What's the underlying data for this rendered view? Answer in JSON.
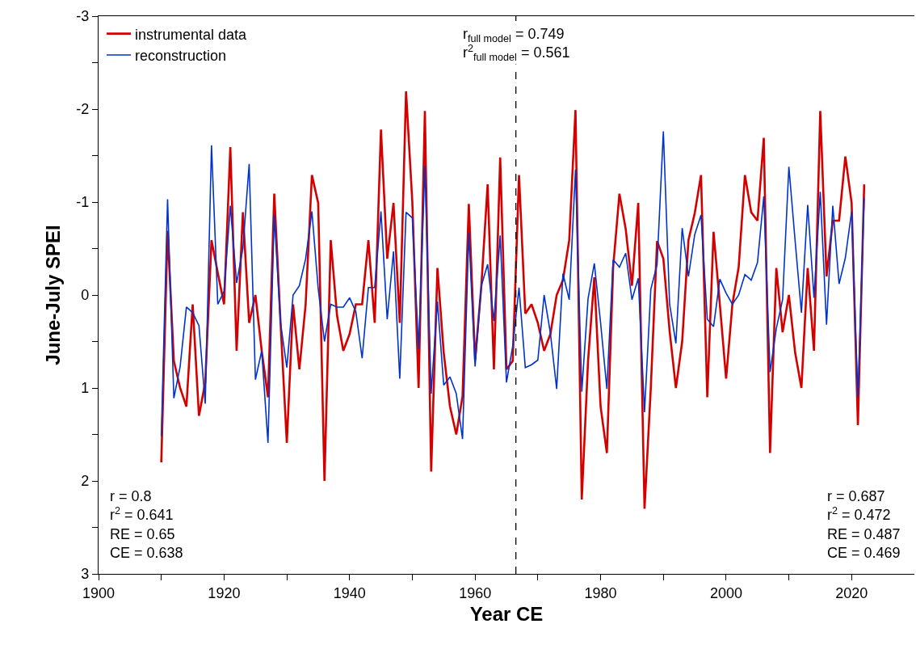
{
  "chart_data": {
    "type": "line",
    "xlabel": "Year CE",
    "ylabel": "June-July SPEI",
    "x": [
      1910,
      1911,
      1912,
      1913,
      1914,
      1915,
      1916,
      1917,
      1918,
      1919,
      1920,
      1921,
      1922,
      1923,
      1924,
      1925,
      1926,
      1927,
      1928,
      1929,
      1930,
      1931,
      1932,
      1933,
      1934,
      1935,
      1936,
      1937,
      1938,
      1939,
      1940,
      1941,
      1942,
      1943,
      1944,
      1945,
      1946,
      1947,
      1948,
      1949,
      1950,
      1951,
      1952,
      1953,
      1954,
      1955,
      1956,
      1957,
      1958,
      1959,
      1960,
      1961,
      1962,
      1963,
      1964,
      1965,
      1966,
      1967,
      1968,
      1969,
      1970,
      1971,
      1972,
      1973,
      1974,
      1975,
      1976,
      1977,
      1978,
      1979,
      1980,
      1981,
      1982,
      1983,
      1984,
      1985,
      1986,
      1987,
      1988,
      1989,
      1990,
      1991,
      1992,
      1993,
      1994,
      1995,
      1996,
      1997,
      1998,
      1999,
      2000,
      2001,
      2002,
      2003,
      2004,
      2005,
      2006,
      2007,
      2008,
      2009,
      2010,
      2011,
      2012,
      2013,
      2014,
      2015,
      2016,
      2017,
      2018,
      2019,
      2020,
      2021,
      2022
    ],
    "series": [
      {
        "name": "instrumental data",
        "color": "#d40000",
        "values": [
          1.8,
          -0.69,
          0.71,
          1.0,
          1.2,
          0.1,
          1.3,
          0.94,
          -0.59,
          -0.24,
          0.1,
          -1.59,
          0.6,
          -0.89,
          0.3,
          0.0,
          0.6,
          1.1,
          -1.09,
          0.3,
          1.59,
          0.1,
          0.8,
          0.1,
          -1.29,
          -0.99,
          2.0,
          -0.59,
          0.22,
          0.6,
          0.42,
          0.1,
          0.1,
          -0.59,
          0.3,
          -1.78,
          -0.39,
          -0.99,
          0.3,
          -2.19,
          -1.0,
          1.0,
          -1.98,
          1.9,
          -0.29,
          0.62,
          1.2,
          1.5,
          1.09,
          -0.98,
          0.7,
          -0.1,
          -1.19,
          0.8,
          -1.48,
          0.8,
          0.71,
          -1.29,
          0.2,
          0.1,
          0.3,
          0.6,
          0.42,
          0.0,
          -0.16,
          -0.59,
          -1.99,
          2.2,
          0.71,
          -0.19,
          1.2,
          1.7,
          -0.3,
          -1.09,
          -0.71,
          -0.1,
          -0.99,
          2.3,
          1.0,
          -0.58,
          -0.39,
          0.39,
          1.0,
          0.5,
          -0.59,
          -0.88,
          -1.29,
          1.1,
          -0.68,
          0.1,
          0.9,
          0.1,
          -0.3,
          -1.29,
          -0.89,
          -0.8,
          -1.69,
          1.7,
          -0.29,
          0.4,
          0.0,
          0.62,
          1.0,
          -0.29,
          0.6,
          -1.98,
          -0.2,
          -0.8,
          -0.8,
          -1.49,
          -0.99,
          1.4,
          -1.19
        ]
      },
      {
        "name": "reconstruction",
        "color": "#0033cc",
        "values": [
          1.52,
          -1.03,
          1.11,
          0.77,
          0.13,
          0.19,
          0.33,
          1.17,
          -1.61,
          0.1,
          -0.04,
          -0.96,
          -0.13,
          -0.5,
          -1.41,
          0.91,
          0.6,
          1.59,
          -0.86,
          0.3,
          0.78,
          0.0,
          -0.1,
          -0.39,
          -0.9,
          -0.07,
          0.5,
          0.1,
          0.13,
          0.13,
          0.03,
          0.18,
          0.68,
          -0.08,
          -0.08,
          -0.9,
          0.26,
          -0.47,
          0.9,
          -0.89,
          -0.83,
          0.58,
          -1.39,
          1.06,
          0.07,
          0.97,
          0.88,
          1.06,
          1.55,
          -0.67,
          0.77,
          -0.1,
          -0.33,
          0.28,
          -0.64,
          0.94,
          0.55,
          -0.08,
          0.78,
          0.75,
          0.7,
          0.0,
          0.41,
          1.01,
          -0.23,
          0.05,
          -1.35,
          1.04,
          0.04,
          -0.34,
          0.3,
          1.01,
          -0.38,
          -0.3,
          -0.45,
          0.05,
          -0.18,
          1.26,
          -0.06,
          -0.33,
          -1.76,
          0.1,
          0.52,
          -0.72,
          -0.2,
          -0.65,
          -0.86,
          0.26,
          0.34,
          -0.17,
          -0.02,
          0.1,
          0.0,
          -0.22,
          -0.16,
          -0.35,
          -1.06,
          0.83,
          0.36,
          0.05,
          -1.38,
          -0.58,
          0.19,
          -0.97,
          0.03,
          -1.11,
          0.32,
          -0.96,
          -0.12,
          -0.4,
          -0.9,
          1.1,
          -1.05
        ]
      }
    ],
    "xlim": [
      1900,
      2030
    ],
    "xticks": [
      1900,
      {
        "value": 1910,
        "label": null
      },
      1920,
      {
        "value": 1930,
        "label": null
      },
      1940,
      {
        "value": 1950,
        "label": null
      },
      1960,
      {
        "value": 1970,
        "label": null
      },
      1980,
      {
        "value": 1990,
        "label": null
      },
      2000,
      {
        "value": 2010,
        "label": null
      },
      2020
    ],
    "ylim": [
      3,
      -3
    ],
    "yticks": [
      -3,
      {
        "value": -2.5,
        "label": null
      },
      -2,
      {
        "value": -1.5,
        "label": null
      },
      -1,
      {
        "value": -0.5,
        "label": null
      },
      0,
      {
        "value": 0.5,
        "label": null
      },
      1,
      {
        "value": 1.5,
        "label": null
      },
      2,
      {
        "value": 2.5,
        "label": null
      },
      3
    ],
    "ref_lines": [
      {
        "axis": "x",
        "value": 1966.5,
        "label": null,
        "color": "#000000",
        "line_style": "dashed"
      }
    ],
    "annotations": [
      "r$_{full model}$ = 0.749\nr$^{2}$$_{full model}$ = 0.561",
      "r = 0.8\nr$^{2}$ = 0.641\nRE = 0.65\nCE = 0.638",
      "r = 0.687\nr$^{2}$ = 0.472\nRE = 0.487\nCE = 0.469"
    ],
    "legend": "top left",
    "marker": "none",
    "line_style": "solid"
  }
}
